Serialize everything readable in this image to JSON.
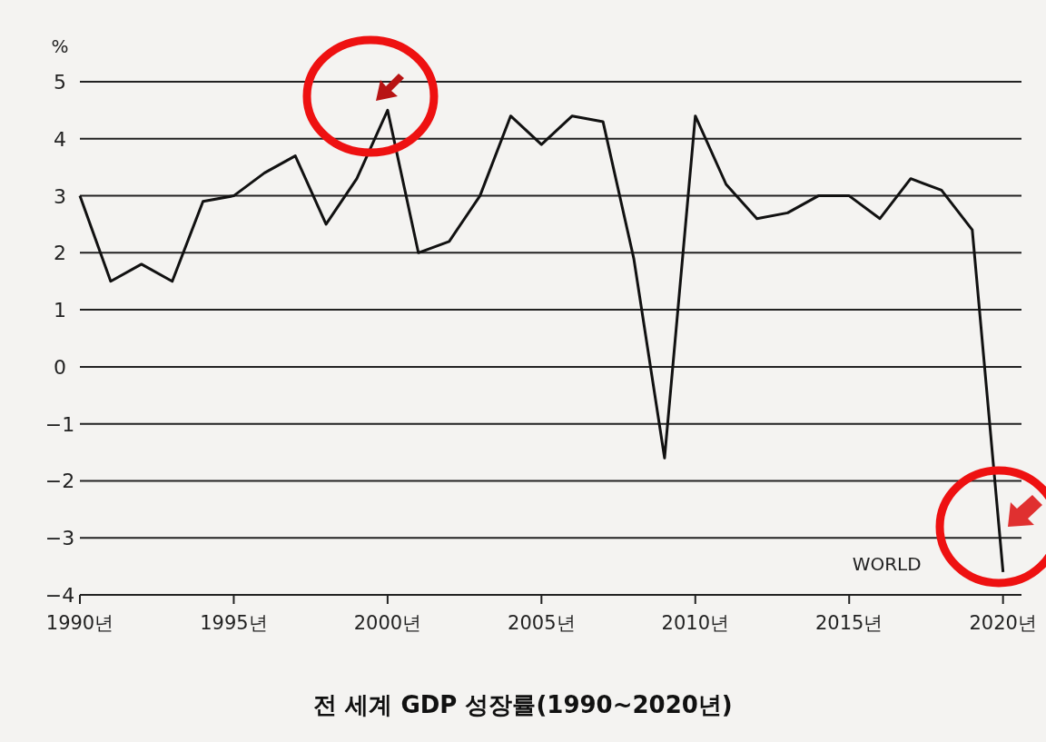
{
  "chart_data": {
    "type": "line",
    "title": "전 세계 GDP 성장률(1990~2020년)",
    "ylabel": "%",
    "x": [
      1990,
      1991,
      1992,
      1993,
      1994,
      1995,
      1996,
      1997,
      1998,
      1999,
      2000,
      2001,
      2002,
      2003,
      2004,
      2005,
      2006,
      2007,
      2008,
      2009,
      2010,
      2011,
      2012,
      2013,
      2014,
      2015,
      2016,
      2017,
      2018,
      2019,
      2020
    ],
    "series": [
      {
        "name": "WORLD",
        "color": "#111111",
        "values": [
          3.0,
          1.5,
          1.8,
          1.5,
          2.9,
          3.0,
          3.4,
          3.7,
          2.5,
          3.3,
          4.5,
          2.0,
          2.2,
          3.0,
          4.4,
          3.9,
          4.4,
          4.3,
          1.9,
          -1.6,
          4.4,
          3.2,
          2.6,
          2.7,
          3.0,
          3.0,
          2.6,
          3.3,
          3.1,
          2.4,
          -3.6
        ]
      }
    ],
    "xlim": [
      1990,
      2020.6
    ],
    "ylim": [
      -4,
      5
    ],
    "xticks": [
      {
        "value": 1990,
        "label": "1990년"
      },
      {
        "value": 1995,
        "label": "1995년"
      },
      {
        "value": 2000,
        "label": "2000년"
      },
      {
        "value": 2005,
        "label": "2005년"
      },
      {
        "value": 2010,
        "label": "2010년"
      },
      {
        "value": 2015,
        "label": "2015년"
      },
      {
        "value": 2020,
        "label": "2020년"
      }
    ],
    "yticks": [
      -4,
      -3,
      -2,
      -1,
      0,
      1,
      2,
      3,
      4,
      5
    ],
    "grid": "y",
    "marker": "none",
    "line_style": "solid"
  }
}
